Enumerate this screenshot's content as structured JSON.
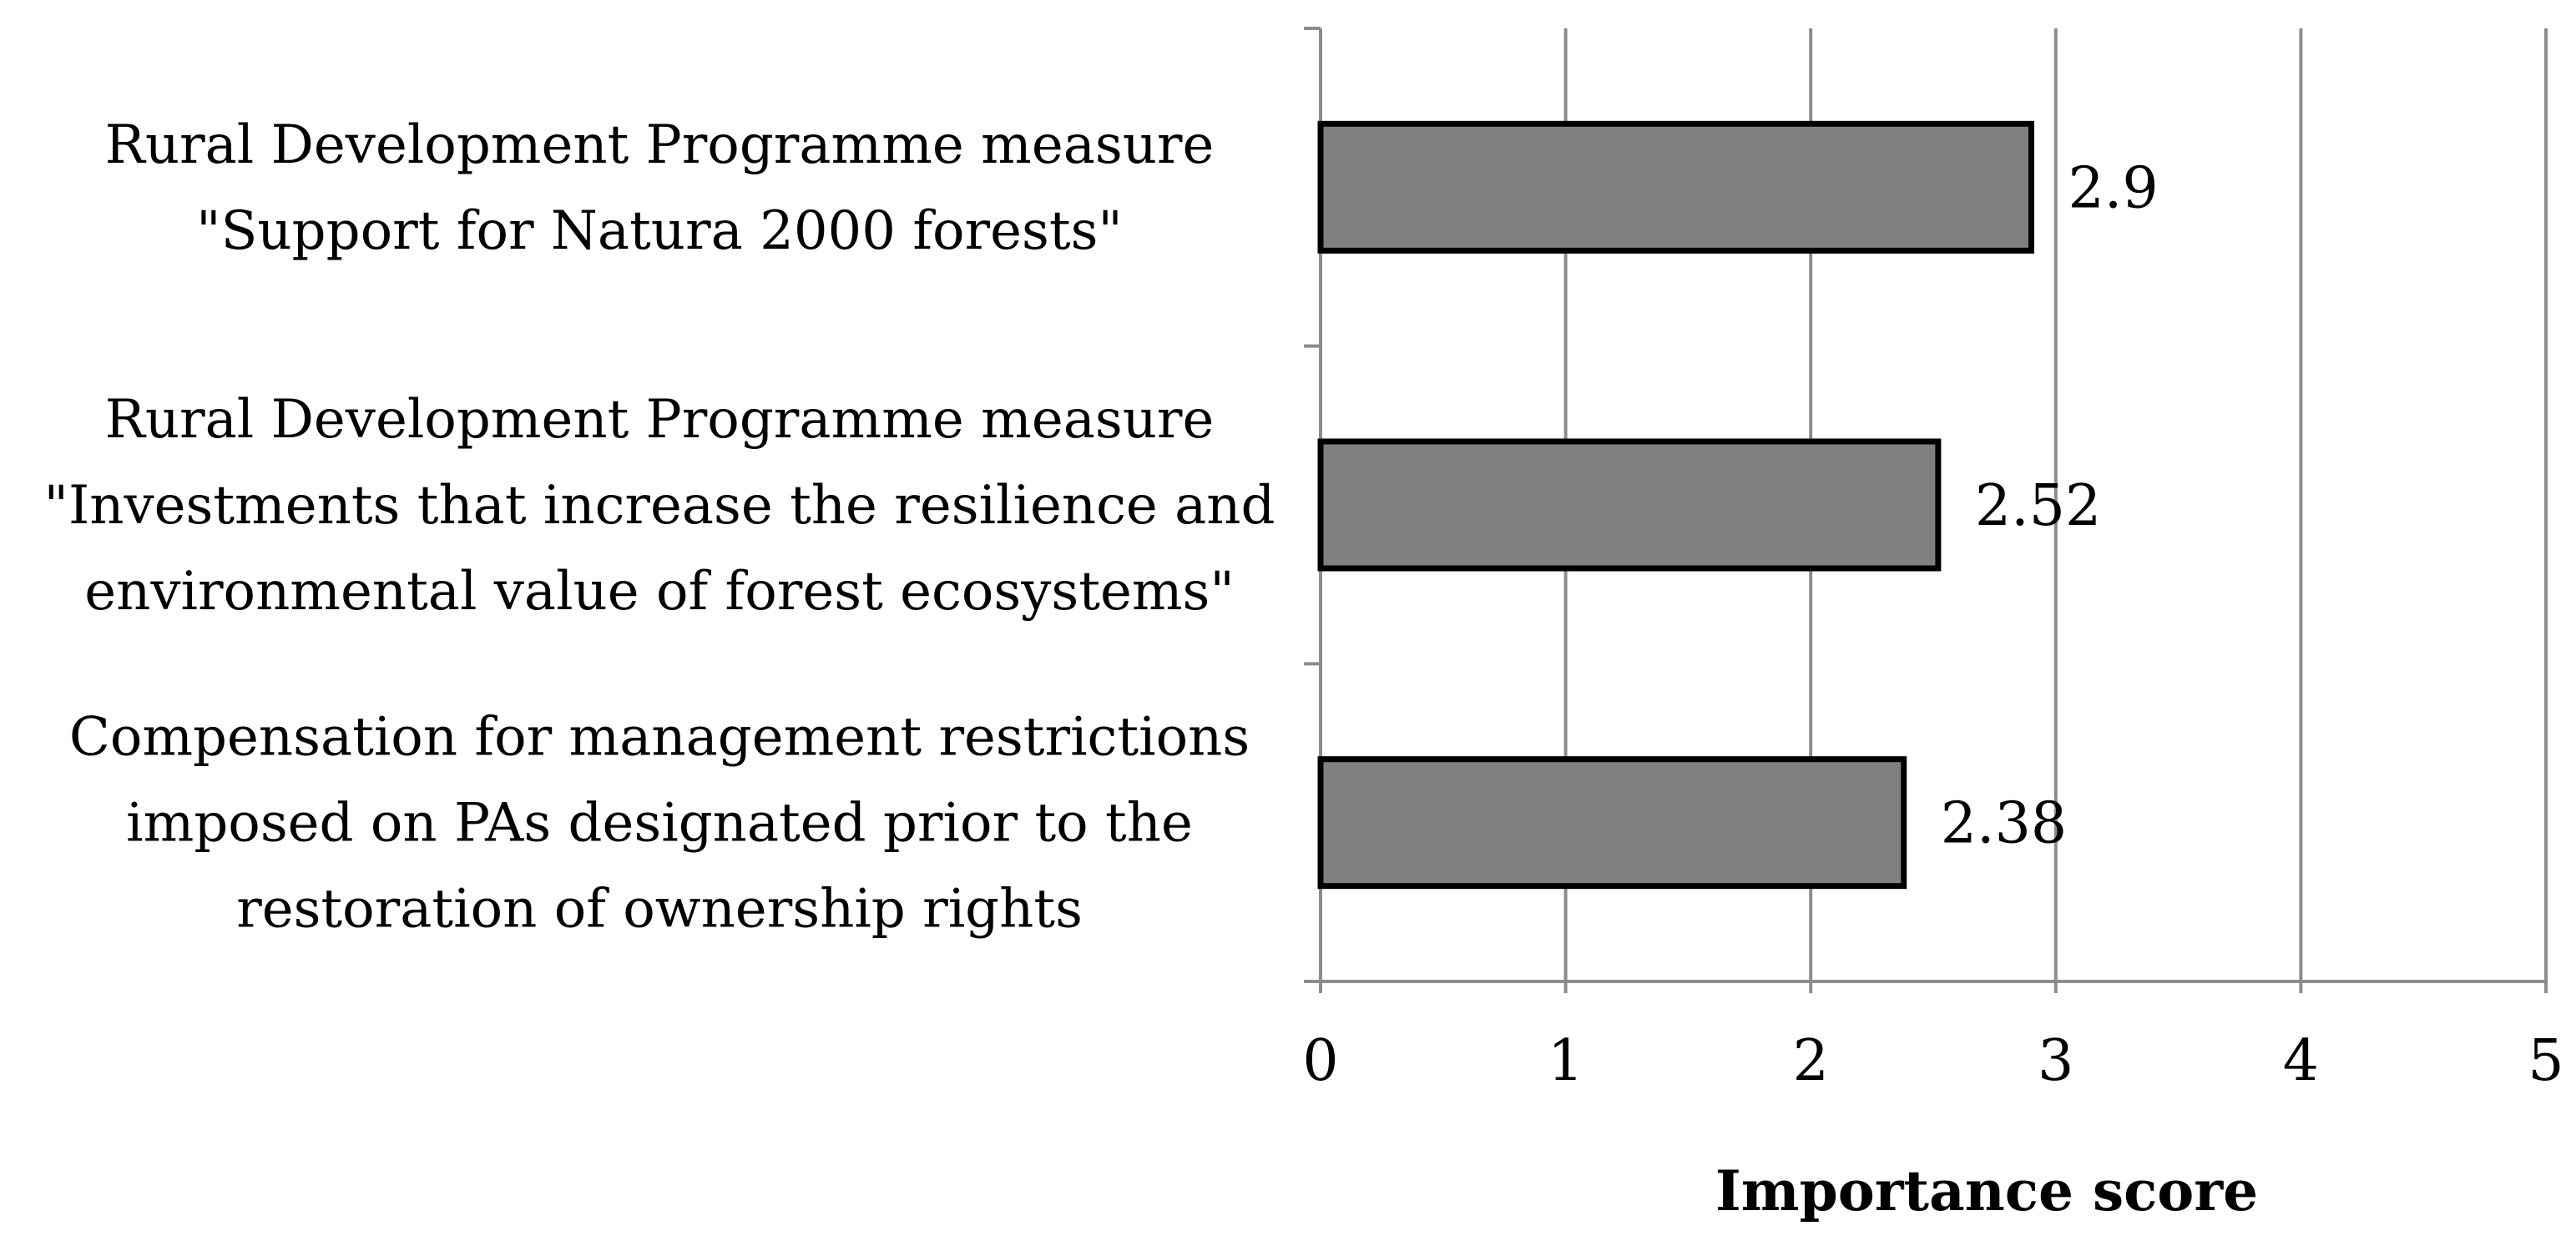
{
  "chart_data": {
    "type": "bar",
    "orientation": "horizontal",
    "categories": [
      [
        "Rural Development Programme measure",
        "\"Support for Natura 2000 forests\""
      ],
      [
        "Rural Development Programme measure",
        "\"Investments that increase the resilience and",
        "environmental value of forest ecosystems\""
      ],
      [
        "Compensation for management restrictions",
        "imposed on PAs designated prior to the",
        "restoration of ownership rights"
      ]
    ],
    "values": [
      2.9,
      2.52,
      2.38
    ],
    "data_labels": [
      "2.9",
      "2.52",
      "2.38"
    ],
    "xlabel": "Importance score",
    "ylabel": "",
    "xlim": [
      0,
      5
    ],
    "ticks": [
      "0",
      "1",
      "2",
      "3",
      "4",
      "5"
    ],
    "grid": true,
    "bar_color": "#808080",
    "bar_edge_color": "#000000",
    "grid_color": "#8c8c8c"
  }
}
